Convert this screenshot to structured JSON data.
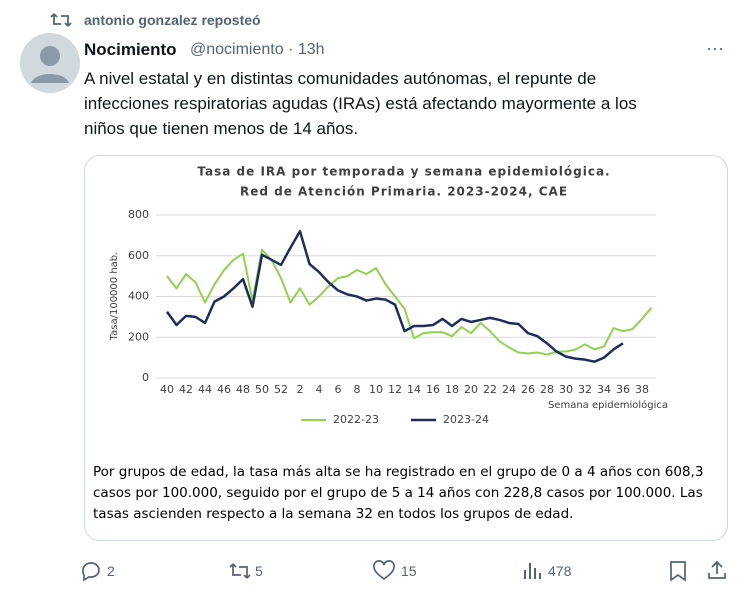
{
  "repost": "antonio gonzalez reposteó",
  "author": {
    "name": "Nocimiento",
    "handle": "@nocimiento",
    "time": "13h"
  },
  "text": "A nivel estatal y en distintas comunidades autónomas, el repunte de infecciones respiratorias agudas (IRAs) está afectando mayormente a los niños que tienen menos de 14 años.",
  "chart_data": {
    "type": "line",
    "title": "Tasa de IRA por temporada y semana epidemiológica.",
    "subtitle": "Red de Atención Primaria. 2023-2024, CAE",
    "y_label": "Tasa/100000 hab.",
    "x_label": "Semana epidemiológica",
    "categories": [
      "40",
      null,
      "42",
      null,
      "44",
      null,
      "46",
      null,
      "48",
      null,
      "50",
      null,
      "52",
      null,
      "2",
      null,
      "4",
      null,
      "6",
      null,
      "8",
      null,
      "10",
      null,
      "12",
      null,
      "14",
      null,
      "16",
      null,
      "18",
      null,
      "20",
      null,
      "22",
      null,
      "24",
      null,
      "26",
      null,
      "28",
      null,
      "30",
      null,
      "32",
      null,
      "34",
      null,
      "36",
      null,
      "38",
      null
    ],
    "series": [
      {
        "name": "2022-23",
        "color": "#92d050",
        "values": [
          500,
          440,
          510,
          470,
          370,
          460,
          530,
          580,
          610,
          380,
          630,
          580,
          490,
          370,
          440,
          360,
          400,
          450,
          490,
          500,
          530,
          510,
          540,
          460,
          400,
          340,
          195,
          220,
          225,
          225,
          205,
          250,
          220,
          270,
          230,
          180,
          150,
          125,
          120,
          125,
          115,
          130,
          130,
          140,
          165,
          140,
          155,
          245,
          230,
          240,
          290,
          345
        ]
      },
      {
        "name": "2023-24",
        "color": "#1f2d5a",
        "values": [
          325,
          260,
          305,
          300,
          270,
          375,
          400,
          440,
          485,
          350,
          605,
          580,
          555,
          640,
          720,
          560,
          520,
          470,
          430,
          410,
          400,
          380,
          390,
          385,
          360,
          230,
          255,
          255,
          260,
          290,
          255,
          290,
          275,
          285,
          295,
          285,
          270,
          265,
          220,
          205,
          170,
          130,
          105,
          95,
          90,
          80,
          100,
          140,
          170,
          null,
          null,
          null
        ]
      }
    ],
    "ylim": [
      0,
      800
    ],
    "yticks": [
      0,
      200,
      400,
      600,
      800
    ],
    "grid": true
  },
  "caption": "Por grupos de edad, la tasa más alta se ha registrado en el grupo de 0 a 4 años con 608,3 casos por 100.000, seguido por el grupo de 5 a 14 años con 228,8 casos por 100.000. Las tasas ascienden respecto a la semana 32 en todos los grupos de edad.",
  "actions": {
    "replies": 2,
    "reposts": 5,
    "likes": 15,
    "views": 478
  }
}
